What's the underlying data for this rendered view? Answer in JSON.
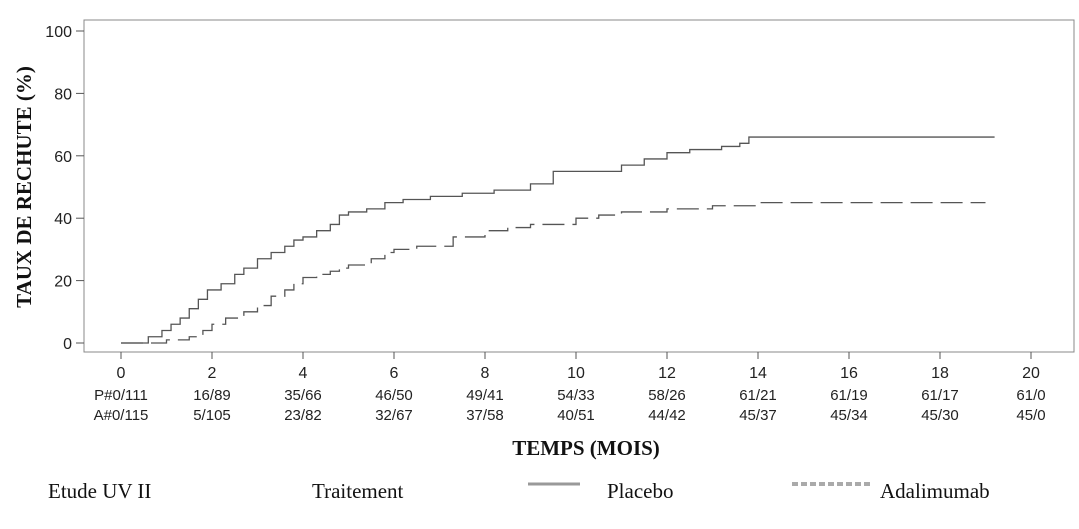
{
  "chart_data": {
    "type": "line",
    "step": true,
    "ylabel": "TAUX DE RECHUTE (%)",
    "xlabel": "TEMPS (MOIS)",
    "xlim": [
      0,
      20
    ],
    "ylim": [
      0,
      100
    ],
    "x_ticks": [
      0,
      2,
      4,
      6,
      8,
      10,
      12,
      14,
      16,
      18,
      20
    ],
    "y_ticks": [
      0,
      20,
      40,
      60,
      80,
      100
    ],
    "grid": false,
    "series": [
      {
        "name": "Placebo",
        "style": "solid",
        "color": "#555555",
        "x": [
          0,
          0.6,
          0.9,
          1.1,
          1.3,
          1.5,
          1.7,
          1.9,
          2.2,
          2.5,
          2.7,
          3.0,
          3.3,
          3.6,
          3.8,
          4.0,
          4.3,
          4.6,
          4.8,
          5.0,
          5.4,
          5.8,
          6.2,
          6.8,
          7.5,
          8.2,
          9.0,
          9.5,
          10.5,
          11.0,
          11.5,
          12.0,
          12.5,
          13.2,
          13.6,
          13.8,
          14.0,
          19.2
        ],
        "y": [
          0,
          2,
          4,
          6,
          8,
          11,
          14,
          17,
          19,
          22,
          24,
          27,
          29,
          31,
          33,
          34,
          36,
          38,
          41,
          42,
          43,
          45,
          46,
          47,
          48,
          49,
          51,
          55,
          55,
          57,
          59,
          61,
          62,
          63,
          64,
          66,
          66,
          66
        ]
      },
      {
        "name": "Adalimumab",
        "style": "dashed",
        "color": "#555555",
        "x": [
          0,
          1.0,
          1.5,
          1.8,
          2.0,
          2.3,
          2.7,
          3.0,
          3.3,
          3.6,
          3.8,
          4.0,
          4.3,
          4.6,
          4.8,
          5.0,
          5.5,
          5.8,
          6.0,
          6.5,
          7.3,
          8.0,
          8.5,
          9.0,
          10.0,
          10.5,
          11.0,
          12.0,
          13.0,
          14.0,
          15.0,
          19.0
        ],
        "y": [
          0,
          1,
          2,
          4,
          6,
          8,
          10,
          12,
          15,
          17,
          19,
          21,
          22,
          23,
          24,
          25,
          27,
          29,
          30,
          31,
          34,
          36,
          37,
          38,
          40,
          41,
          42,
          43,
          44,
          45,
          45,
          45
        ]
      }
    ],
    "risk_table": {
      "rows": [
        {
          "prefix": "P#",
          "values": [
            "0/111",
            "16/89",
            "35/66",
            "46/50",
            "49/41",
            "54/33",
            "58/26",
            "61/21",
            "61/19",
            "61/17",
            "61/0"
          ]
        },
        {
          "prefix": "A#",
          "values": [
            "0/115",
            "5/105",
            "23/82",
            "32/67",
            "37/58",
            "40/51",
            "44/42",
            "45/37",
            "45/34",
            "45/30",
            "45/0"
          ]
        }
      ]
    }
  },
  "footer": {
    "study": "Etude UV II",
    "treatment_label": "Traitement",
    "legend": [
      {
        "label": "Placebo",
        "style": "solid"
      },
      {
        "label": "Adalimumab",
        "style": "dashed"
      }
    ]
  }
}
